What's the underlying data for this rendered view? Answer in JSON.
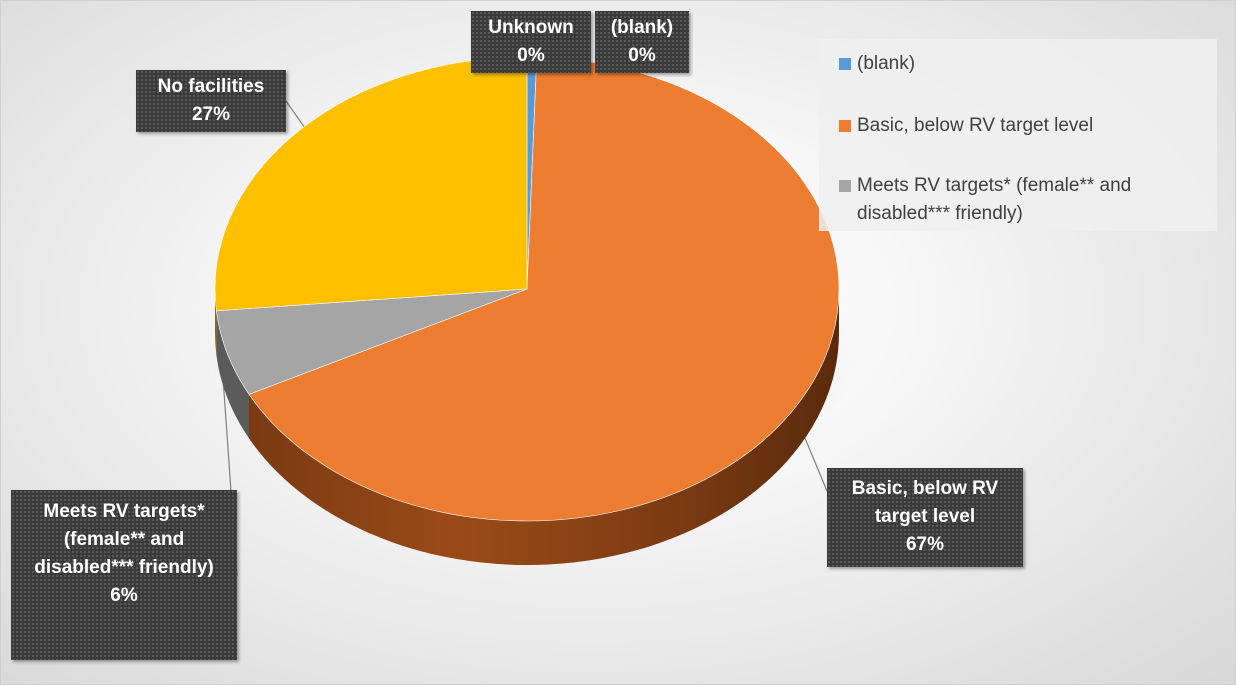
{
  "chart_data": {
    "type": "pie",
    "categories": [
      "(blank)",
      "Basic, below RV target level",
      "Meets RV targets* (female** and disabled*** friendly)",
      "No facilities",
      "Unknown"
    ],
    "values": [
      0.5,
      67,
      6,
      26.5,
      0
    ],
    "colors": [
      "#5B9BD5",
      "#ED7D31",
      "#A5A5A5",
      "#FFC000",
      "#4472C4"
    ],
    "data_labels": [
      {
        "name": "Unknown",
        "pct": "0%"
      },
      {
        "name": "(blank)",
        "pct": "0%"
      },
      {
        "name": "No facilities",
        "pct": "27%"
      },
      {
        "name": "Basic, below RV target level",
        "pct": "67%"
      },
      {
        "name": "Meets RV targets* (female** and disabled*** friendly)",
        "pct": "6%"
      }
    ],
    "legend": {
      "placement": "top-right",
      "items": [
        {
          "label": "(blank)",
          "color": "#5B9BD5"
        },
        {
          "label": "Basic, below RV target level",
          "color": "#ED7D31"
        },
        {
          "label": "Meets RV targets* (female** and disabled*** friendly)",
          "color": "#A5A5A5"
        }
      ]
    },
    "style": "3d-pie"
  }
}
